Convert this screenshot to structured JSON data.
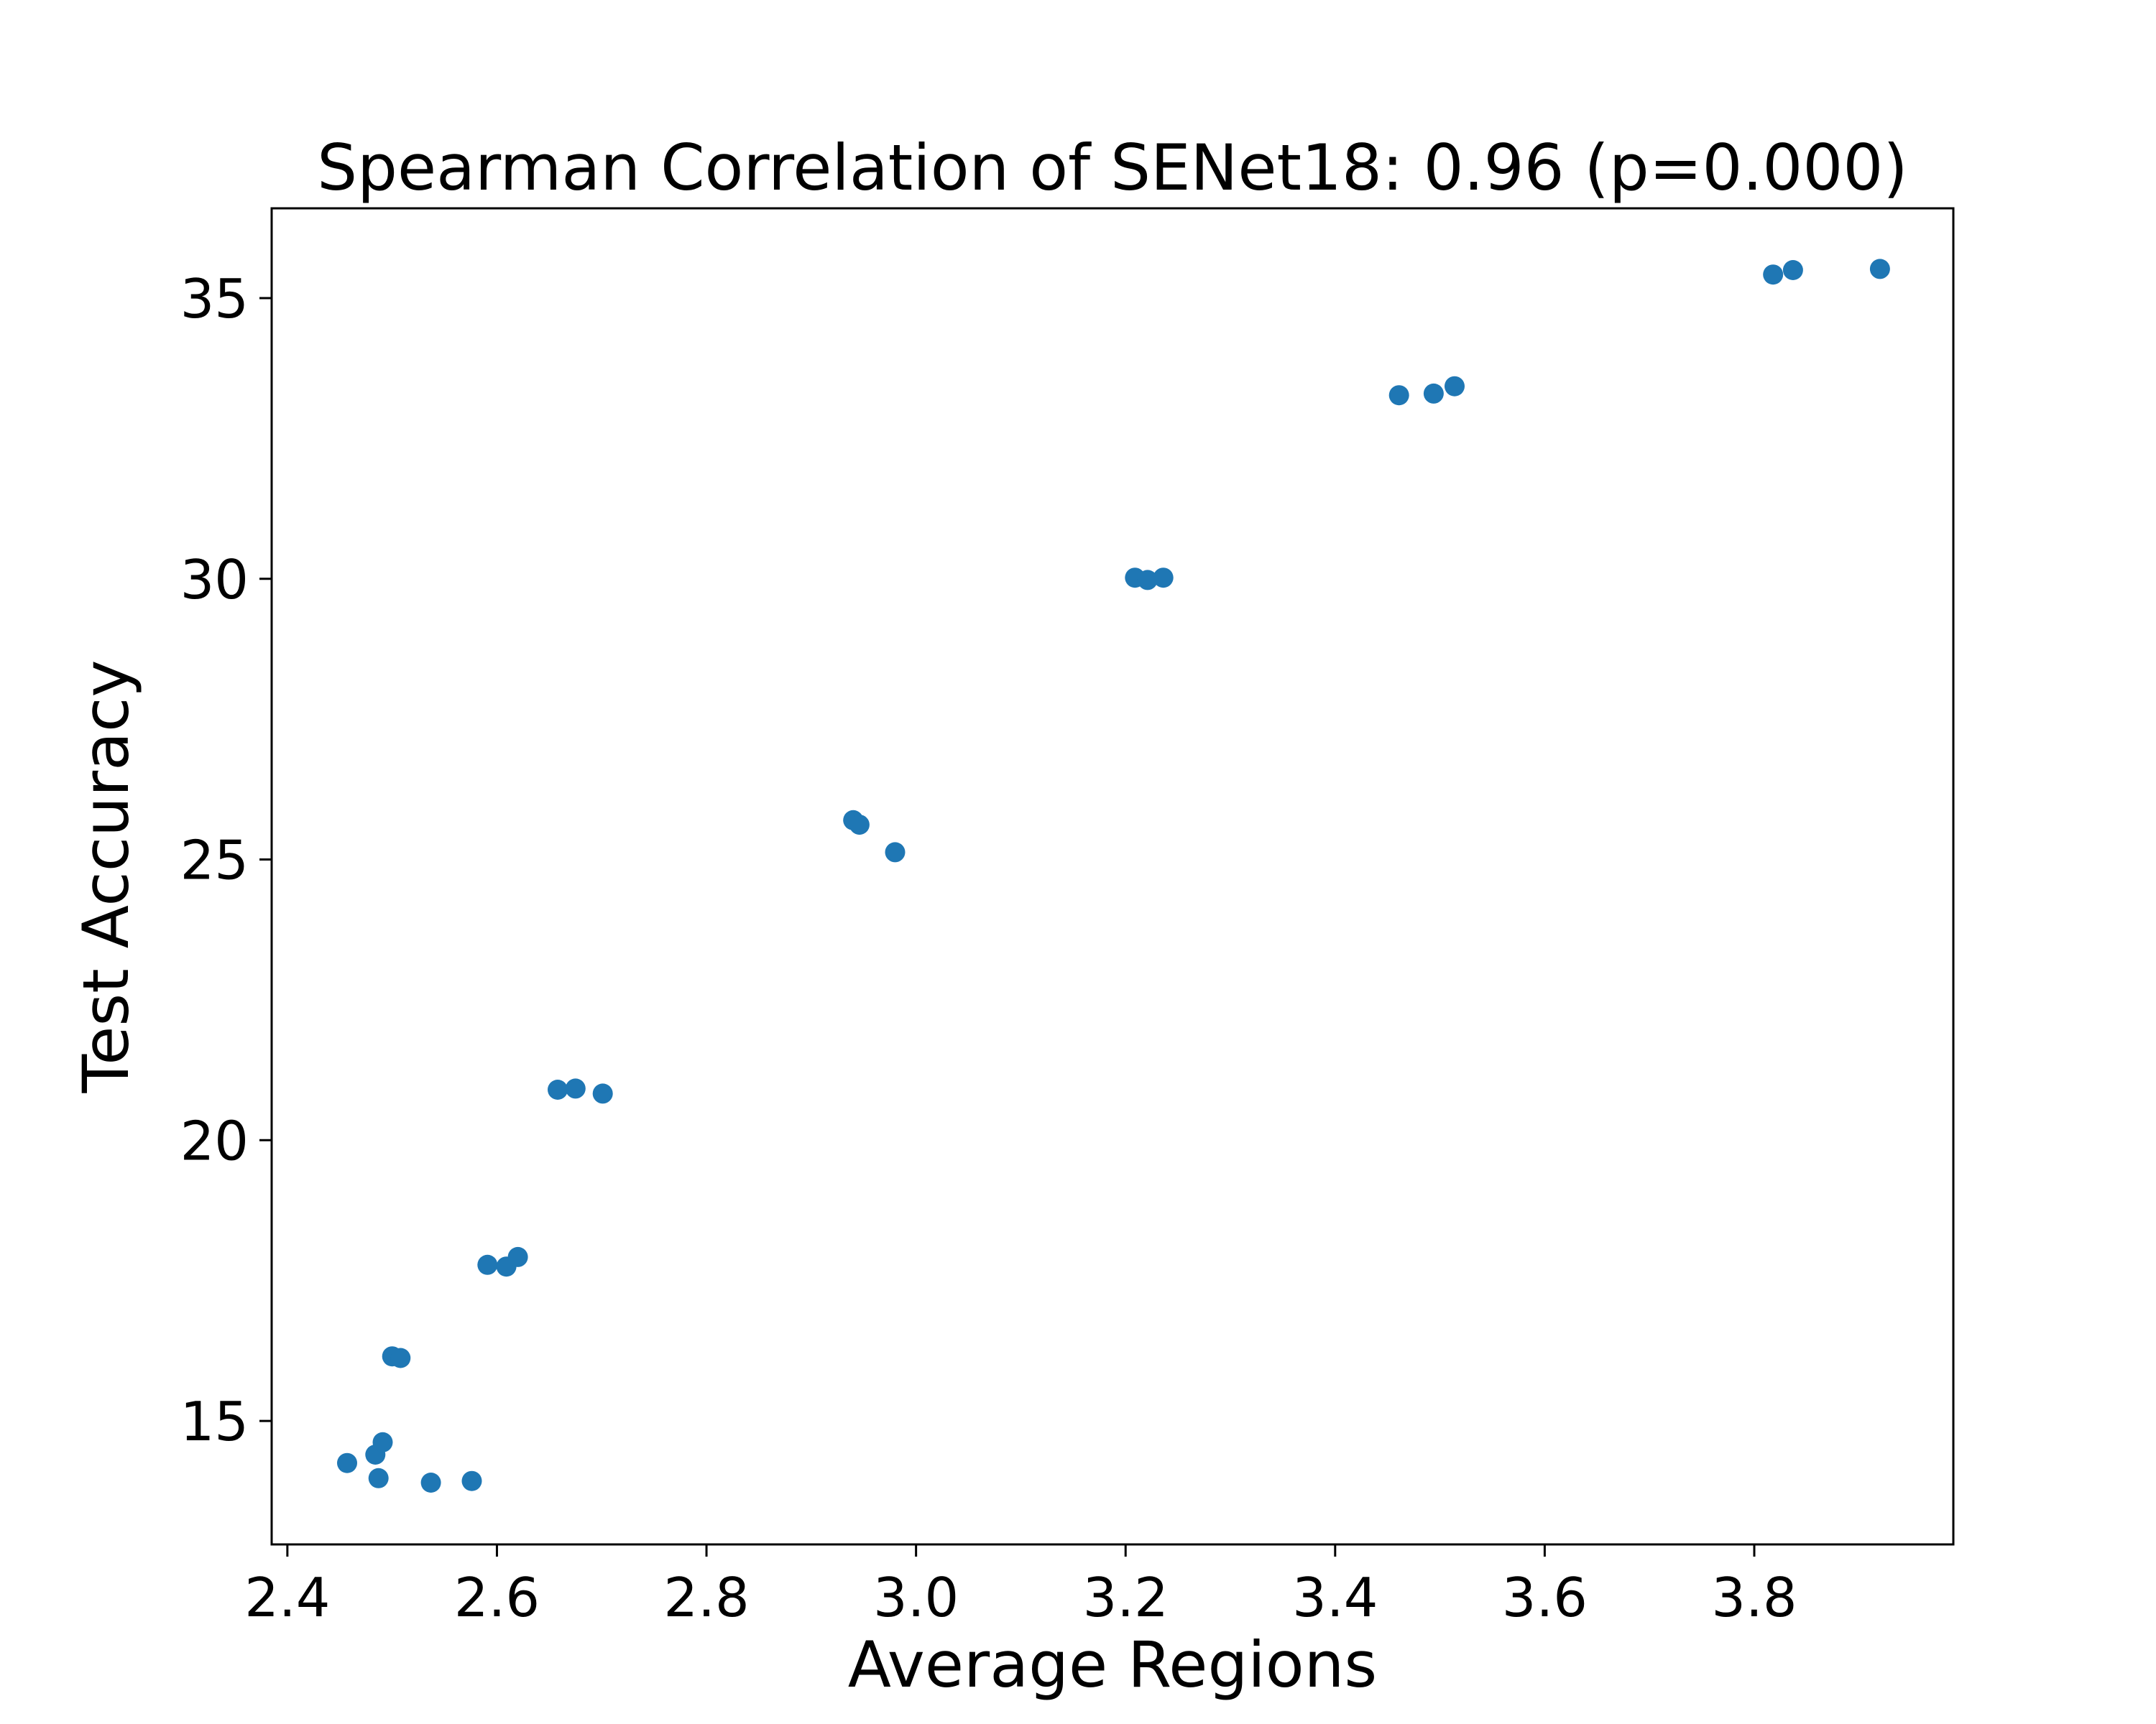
{
  "chart_data": {
    "type": "scatter",
    "title": "Spearman Correlation of SENet18: 0.96 (p=0.000)",
    "xlabel": "Average Regions",
    "ylabel": "Test Accuracy",
    "xlim": [
      2.385,
      3.99
    ],
    "ylim": [
      12.8,
      36.6
    ],
    "xticks": [
      2.4,
      2.6,
      2.8,
      3.0,
      3.2,
      3.4,
      3.6,
      3.8
    ],
    "xtick_labels": [
      "2.4",
      "2.6",
      "2.8",
      "3.0",
      "3.2",
      "3.4",
      "3.6",
      "3.8"
    ],
    "yticks": [
      15,
      20,
      25,
      30,
      35
    ],
    "ytick_labels": [
      "15",
      "20",
      "25",
      "30",
      "35"
    ],
    "grid": false,
    "marker_color": "#1f77b4",
    "series": [
      {
        "points": [
          {
            "x": 2.457,
            "y": 14.25
          },
          {
            "x": 2.484,
            "y": 14.4
          },
          {
            "x": 2.487,
            "y": 13.98
          },
          {
            "x": 2.491,
            "y": 14.62
          },
          {
            "x": 2.5,
            "y": 16.15
          },
          {
            "x": 2.508,
            "y": 16.12
          },
          {
            "x": 2.537,
            "y": 13.9
          },
          {
            "x": 2.576,
            "y": 13.93
          },
          {
            "x": 2.591,
            "y": 17.78
          },
          {
            "x": 2.609,
            "y": 17.75
          },
          {
            "x": 2.62,
            "y": 17.92
          },
          {
            "x": 2.658,
            "y": 20.9
          },
          {
            "x": 2.675,
            "y": 20.92
          },
          {
            "x": 2.701,
            "y": 20.83
          },
          {
            "x": 2.94,
            "y": 25.7
          },
          {
            "x": 2.946,
            "y": 25.62
          },
          {
            "x": 2.98,
            "y": 25.13
          },
          {
            "x": 3.209,
            "y": 30.02
          },
          {
            "x": 3.221,
            "y": 29.98
          },
          {
            "x": 3.236,
            "y": 30.02
          },
          {
            "x": 3.461,
            "y": 33.27
          },
          {
            "x": 3.494,
            "y": 33.3
          },
          {
            "x": 3.514,
            "y": 33.43
          },
          {
            "x": 3.818,
            "y": 35.42
          },
          {
            "x": 3.837,
            "y": 35.5
          },
          {
            "x": 3.92,
            "y": 35.52
          }
        ]
      }
    ]
  }
}
